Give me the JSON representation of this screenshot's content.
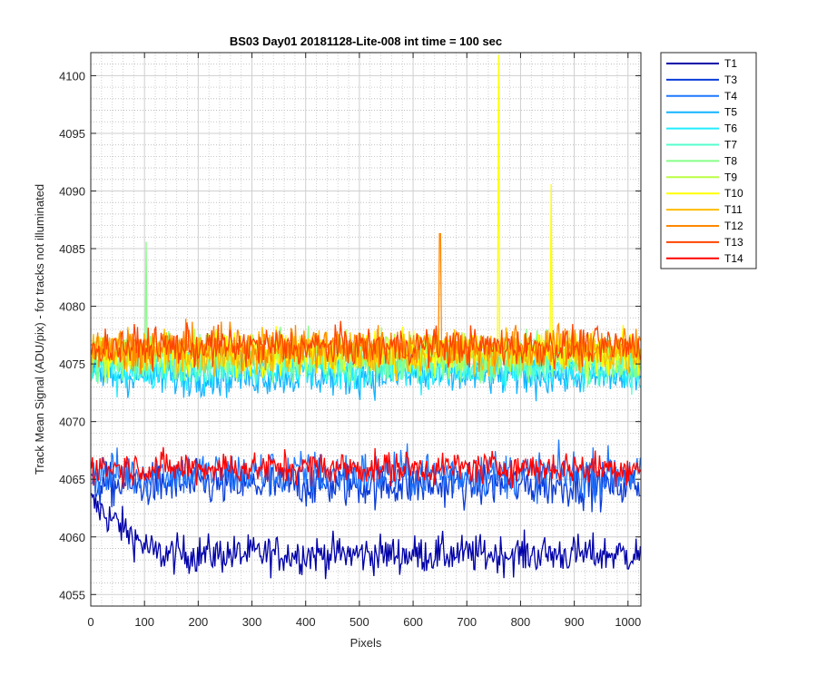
{
  "chart_data": {
    "type": "line",
    "title": "BS03 Day01 20181128-Lite-008 int time = 100 sec",
    "xlabel": "Pixels",
    "ylabel": "Track Mean Signal (ADU/pix) - for tracks not illuminated",
    "xlim": [
      0,
      1024
    ],
    "ylim": [
      4054,
      4102
    ],
    "xticks": [
      0,
      100,
      200,
      300,
      400,
      500,
      600,
      700,
      800,
      900,
      1000
    ],
    "yticks": [
      4055,
      4060,
      4065,
      4070,
      4075,
      4080,
      4085,
      4090,
      4095,
      4100
    ],
    "grid": "major and minor",
    "legend_position": "outside-right",
    "series": [
      {
        "name": "T1",
        "color": "#0000a8",
        "baseline": 4058.5,
        "noise": 1.4,
        "start_level": 4063
      },
      {
        "name": "T3",
        "color": "#0a3cd8",
        "baseline": 4064.5,
        "noise": 1.6
      },
      {
        "name": "T4",
        "color": "#1e78ff",
        "baseline": 4065.5,
        "noise": 1.7
      },
      {
        "name": "T5",
        "color": "#14b4ff",
        "baseline": 4074.0,
        "noise": 1.5
      },
      {
        "name": "T6",
        "color": "#22eeff",
        "baseline": 4074.5,
        "noise": 1.5
      },
      {
        "name": "T7",
        "color": "#55ffcc",
        "baseline": 4075.0,
        "noise": 1.5
      },
      {
        "name": "T8",
        "color": "#88ff88",
        "baseline": 4075.5,
        "noise": 1.6,
        "spikes": [
          {
            "x": 103,
            "y": 4085.6
          }
        ]
      },
      {
        "name": "T9",
        "color": "#bbff44",
        "baseline": 4076.0,
        "noise": 1.5
      },
      {
        "name": "T10",
        "color": "#ffff00",
        "baseline": 4076.0,
        "noise": 1.6,
        "spikes": [
          {
            "x": 759,
            "y": 4101.8
          },
          {
            "x": 857,
            "y": 4090.6
          }
        ]
      },
      {
        "name": "T11",
        "color": "#ffbb00",
        "baseline": 4076.0,
        "noise": 1.6
      },
      {
        "name": "T12",
        "color": "#ff8800",
        "baseline": 4076.5,
        "noise": 1.5,
        "spikes": [
          {
            "x": 650,
            "y": 4086.3
          }
        ]
      },
      {
        "name": "T13",
        "color": "#ff4400",
        "baseline": 4076.5,
        "noise": 1.4
      },
      {
        "name": "T14",
        "color": "#ff0000",
        "baseline": 4066.0,
        "noise": 1.2
      }
    ]
  }
}
